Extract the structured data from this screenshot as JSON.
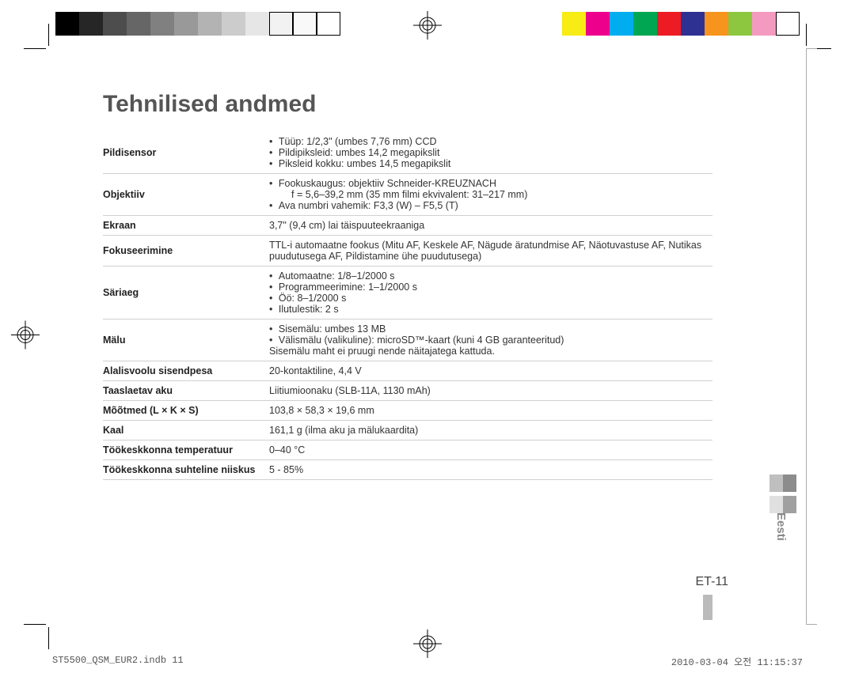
{
  "colorbars": {
    "left": [
      "#000000",
      "#262626",
      "#4d4d4d",
      "#666666",
      "#808080",
      "#999999",
      "#b3b3b3",
      "#cccccc",
      "#e6e6e6",
      "#f2f2f2",
      "#f9f9f9",
      "#ffffff"
    ],
    "right": [
      "#f7ec13",
      "#ec008c",
      "#00aeef",
      "#00a651",
      "#ed1c24",
      "#2e3192",
      "#f7941d",
      "#8dc63f",
      "#f49ac1",
      "#ffffff"
    ]
  },
  "title": "Tehnilised andmed",
  "specs": {
    "rows": [
      {
        "label": "Pildisensor",
        "bullets": [
          "Tüüp: 1/2,3\" (umbes 7,76 mm) CCD",
          "Pildipiksleid: umbes 14,2 megapikslit",
          "Piksleid kokku: umbes 14,5 megapikslit"
        ]
      },
      {
        "label": "Objektiiv",
        "bullets": [
          "Fookuskaugus: objektiiv Schneider-KREUZNACH\n    f = 5,6–39,2 mm (35 mm filmi ekvivalent: 31–217 mm)",
          "Ava numbri vahemik: F3,3 (W) – F5,5 (T)"
        ]
      },
      {
        "label": "Ekraan",
        "plain": "3,7\" (9,4 cm) lai täispuuteekraaniga"
      },
      {
        "label": "Fokuseerimine",
        "plain": "TTL-i automaatne fookus (Mitu AF, Keskele AF, Nägude äratundmise AF, Näotuvastuse AF, Nutikas puudutusega AF, Pildistamine ühe puudutusega)"
      },
      {
        "label": "Säriaeg",
        "bullets": [
          "Automaatne: 1/8–1/2000 s",
          "Programmeerimine: 1–1/2000 s",
          "Öö: 8–1/2000 s",
          "Ilutulestik: 2 s"
        ]
      },
      {
        "label": "Mälu",
        "bullets": [
          "Sisemälu: umbes 13 MB",
          "Välismälu (valikuline): microSD™-kaart (kuni 4 GB garanteeritud)"
        ],
        "note": "Sisemälu maht ei pruugi nende näitajatega kattuda."
      },
      {
        "label": "Alalisvoolu sisendpesa",
        "plain": "20-kontaktiline, 4,4 V"
      },
      {
        "label": "Taaslaetav aku",
        "plain": "Liitiumioonaku (SLB-11A, 1130 mAh)"
      },
      {
        "label": "Mõõtmed (L × K × S)",
        "plain": "103,8 × 58,3 × 19,6 mm"
      },
      {
        "label": "Kaal",
        "plain": "161,1 g (ilma aku ja mälukaardita)"
      },
      {
        "label": "Töökeskkonna temperatuur",
        "plain": "0–40 °C"
      },
      {
        "label": "Töökeskkonna suhteline niiskus",
        "plain": "5 - 85%"
      }
    ]
  },
  "sidetab": {
    "label": "Eesti",
    "block_colors": [
      "#bfbfbf",
      "#8c8c8c",
      "#e0e0e0",
      "#a0a0a0"
    ]
  },
  "pagenum": "ET-11",
  "footer": {
    "left": "ST5500_QSM_EUR2.indb   11",
    "right": "2010-03-04   오전 11:15:37"
  },
  "style": {
    "title_color": "#555555",
    "text_color": "#333333",
    "rule_color": "#d0d0d0",
    "title_fontsize": 30,
    "body_fontsize": 12.5
  }
}
